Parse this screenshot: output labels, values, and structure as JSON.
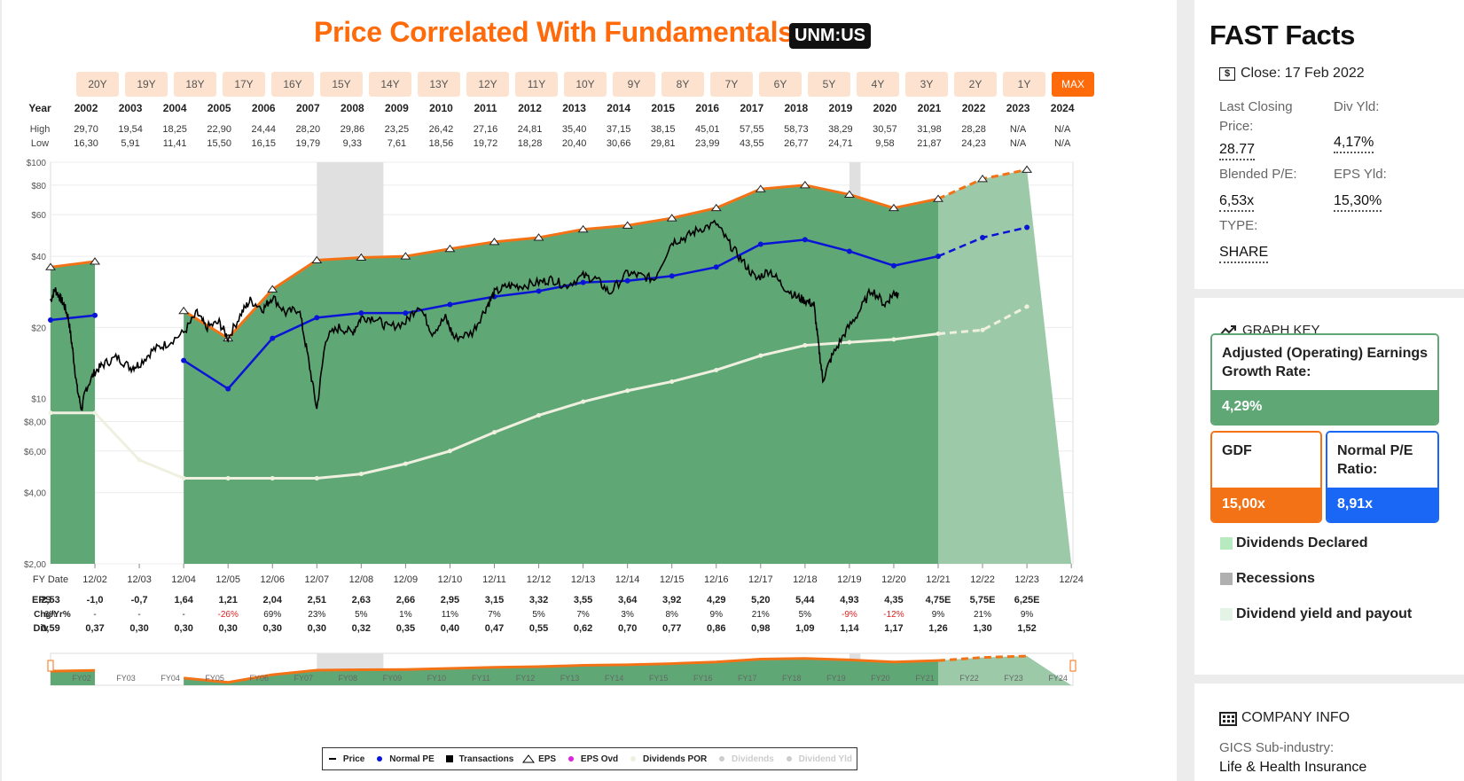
{
  "header": {
    "title": "Price Correlated With Fundamentals",
    "ticker": "UNM:US",
    "ranges": [
      "20Y",
      "19Y",
      "18Y",
      "17Y",
      "16Y",
      "15Y",
      "14Y",
      "13Y",
      "12Y",
      "11Y",
      "10Y",
      "9Y",
      "8Y",
      "7Y",
      "6Y",
      "5Y",
      "4Y",
      "3Y",
      "2Y",
      "1Y",
      "MAX"
    ],
    "active_range": "MAX"
  },
  "legend": [
    {
      "label": "Price",
      "icon": "line-dash",
      "color": "#000000",
      "active": true
    },
    {
      "label": "Normal PE",
      "icon": "dot",
      "color": "#0a14d6",
      "active": true
    },
    {
      "label": "Transactions",
      "icon": "square",
      "color": "#000000",
      "active": true
    },
    {
      "label": "EPS",
      "icon": "triangle",
      "color": "#000000",
      "active": true
    },
    {
      "label": "EPS Ovd",
      "icon": "dot",
      "color": "#e020e0",
      "active": true
    },
    {
      "label": "Dividends POR",
      "icon": "dot",
      "color": "#f0f0e0",
      "active": true
    },
    {
      "label": "Dividends",
      "icon": "dot",
      "color": "#cccccc",
      "active": false
    },
    {
      "label": "Dividend Yld",
      "icon": "dot",
      "color": "#cccccc",
      "active": false
    }
  ],
  "chart_data": {
    "type": "line",
    "title": "Price Correlated With Fundamentals",
    "y_scale": "log",
    "ylim": [
      2,
      100
    ],
    "y_ticks": [
      {
        "v": 100,
        "label": "$100"
      },
      {
        "v": 80,
        "label": "$80"
      },
      {
        "v": 60,
        "label": "$60"
      },
      {
        "v": 40,
        "label": "$40"
      },
      {
        "v": 20,
        "label": "$20"
      },
      {
        "v": 10,
        "label": "$10"
      },
      {
        "v": 8,
        "label": "$8,00"
      },
      {
        "v": 6,
        "label": "$6,00"
      },
      {
        "v": 4,
        "label": "$4,00"
      },
      {
        "v": 2,
        "label": "$2,00"
      }
    ],
    "table": {
      "year_label": "Year",
      "high_label": "High",
      "low_label": "Low",
      "years": [
        "2002",
        "2003",
        "2004",
        "2005",
        "2006",
        "2007",
        "2008",
        "2009",
        "2010",
        "2011",
        "2012",
        "2013",
        "2014",
        "2015",
        "2016",
        "2017",
        "2018",
        "2019",
        "2020",
        "2021",
        "2022",
        "2023",
        "2024"
      ],
      "high": [
        "29,70",
        "19,54",
        "18,25",
        "22,90",
        "24,44",
        "28,20",
        "29,86",
        "23,25",
        "26,42",
        "27,16",
        "24,81",
        "35,40",
        "37,15",
        "38,15",
        "45,01",
        "57,55",
        "58,73",
        "38,29",
        "30,57",
        "31,98",
        "28,28",
        "N/A",
        "N/A"
      ],
      "low": [
        "16,30",
        "5,91",
        "11,41",
        "15,50",
        "16,15",
        "19,79",
        "9,33",
        "7,61",
        "18,56",
        "19,72",
        "18,28",
        "20,40",
        "30,66",
        "29,81",
        "23,99",
        "43,55",
        "26,77",
        "24,71",
        "9,58",
        "21,87",
        "24,23",
        "N/A",
        "N/A"
      ]
    },
    "fy_label": "FY Date",
    "fy_dates": [
      "12/02",
      "12/03",
      "12/04",
      "12/05",
      "12/06",
      "12/07",
      "12/08",
      "12/09",
      "12/10",
      "12/11",
      "12/12",
      "12/13",
      "12/14",
      "12/15",
      "12/16",
      "12/17",
      "12/18",
      "12/19",
      "12/20",
      "12/21",
      "12/22",
      "12/23",
      "12/24"
    ],
    "eps_label": "EPS",
    "eps": [
      "2,53",
      "-1,0",
      "-0,7",
      "1,64",
      "1,21",
      "2,04",
      "2,51",
      "2,63",
      "2,66",
      "2,95",
      "3,15",
      "3,32",
      "3,55",
      "3,64",
      "3,92",
      "4,29",
      "5,20",
      "5,44",
      "4,93",
      "4,35",
      "4,75E",
      "5,75E",
      "6,25E"
    ],
    "chg_label": "Chg/Yr%",
    "chg": [
      "6%",
      "-",
      "-",
      "-",
      "-26%",
      "69%",
      "23%",
      "5%",
      "1%",
      "11%",
      "7%",
      "5%",
      "7%",
      "3%",
      "8%",
      "9%",
      "21%",
      "5%",
      "-9%",
      "-12%",
      "9%",
      "21%",
      "9%"
    ],
    "div_label": "Div",
    "div": [
      "0,59",
      "0,37",
      "0,30",
      "0,30",
      "0,30",
      "0,30",
      "0,30",
      "0,32",
      "0,35",
      "0,40",
      "0,47",
      "0,55",
      "0,62",
      "0,70",
      "0,77",
      "0,86",
      "0,98",
      "1,09",
      "1,14",
      "1,17",
      "1,26",
      "1,30",
      "1,52"
    ],
    "eps_value_line": [
      36,
      38,
      null,
      23.5,
      18,
      29,
      38.5,
      39.5,
      40,
      43,
      46,
      48,
      52,
      54,
      58,
      64,
      77,
      80,
      73,
      64,
      70,
      85,
      93
    ],
    "normal_pe_line": [
      21.5,
      22.5,
      null,
      14.5,
      11,
      18,
      22,
      23,
      23,
      25,
      27,
      28.5,
      31,
      31.5,
      33,
      36,
      45,
      47,
      42,
      36.5,
      40,
      48,
      53
    ],
    "dividend_line": [
      8.7,
      8.7,
      5.5,
      4.6,
      4.6,
      4.6,
      4.6,
      4.8,
      5.3,
      6.0,
      7.2,
      8.5,
      9.7,
      10.8,
      11.8,
      13.2,
      15.2,
      16.8,
      17.3,
      17.8,
      18.8,
      19.5,
      24.5
    ],
    "price_points": [
      [
        0.0,
        26
      ],
      [
        0.1,
        29
      ],
      [
        0.2,
        27
      ],
      [
        0.3,
        25
      ],
      [
        0.4,
        22
      ],
      [
        0.5,
        16
      ],
      [
        0.6,
        11
      ],
      [
        0.7,
        9
      ],
      [
        0.8,
        11
      ],
      [
        1.0,
        13
      ],
      [
        1.2,
        14
      ],
      [
        1.5,
        15
      ],
      [
        1.8,
        13.5
      ],
      [
        2.0,
        14
      ],
      [
        2.3,
        16
      ],
      [
        2.6,
        17
      ],
      [
        3.0,
        19
      ],
      [
        3.3,
        23
      ],
      [
        3.5,
        20
      ],
      [
        3.8,
        21
      ],
      [
        4.0,
        18
      ],
      [
        4.3,
        23
      ],
      [
        4.5,
        26
      ],
      [
        4.8,
        24
      ],
      [
        5.0,
        27
      ],
      [
        5.3,
        23
      ],
      [
        5.6,
        24
      ],
      [
        5.8,
        15
      ],
      [
        6.0,
        9
      ],
      [
        6.2,
        18
      ],
      [
        6.5,
        20
      ],
      [
        6.8,
        19
      ],
      [
        7.0,
        22
      ],
      [
        7.3,
        22
      ],
      [
        7.6,
        20
      ],
      [
        8.0,
        21
      ],
      [
        8.3,
        25
      ],
      [
        8.6,
        19
      ],
      [
        8.9,
        22
      ],
      [
        9.1,
        18
      ],
      [
        9.5,
        19
      ],
      [
        9.8,
        24
      ],
      [
        10.0,
        28
      ],
      [
        10.3,
        30
      ],
      [
        10.6,
        30
      ],
      [
        11.0,
        31
      ],
      [
        11.3,
        32
      ],
      [
        11.6,
        30
      ],
      [
        12.0,
        33
      ],
      [
        12.3,
        32
      ],
      [
        12.6,
        28
      ],
      [
        13.0,
        34
      ],
      [
        13.3,
        33
      ],
      [
        13.6,
        32
      ],
      [
        14.0,
        46
      ],
      [
        14.3,
        48
      ],
      [
        14.6,
        52
      ],
      [
        15.0,
        55
      ],
      [
        15.3,
        45
      ],
      [
        15.6,
        38
      ],
      [
        15.9,
        32
      ],
      [
        16.2,
        35
      ],
      [
        16.5,
        30
      ],
      [
        16.8,
        27
      ],
      [
        17.0,
        26
      ],
      [
        17.2,
        25
      ],
      [
        17.3,
        17
      ],
      [
        17.4,
        12
      ],
      [
        17.6,
        15
      ],
      [
        17.9,
        19
      ],
      [
        18.2,
        23
      ],
      [
        18.5,
        29
      ],
      [
        18.8,
        25
      ],
      [
        19.0,
        28
      ],
      [
        19.1,
        28
      ]
    ],
    "x_ticks": [
      "FY02",
      "FY03",
      "FY04",
      "FY05",
      "FY06",
      "FY07",
      "FY08",
      "FY09",
      "FY10",
      "FY11",
      "FY12",
      "FY13",
      "FY14",
      "FY15",
      "FY16",
      "FY17",
      "FY18",
      "FY19",
      "FY20",
      "FY21",
      "FY22",
      "FY23",
      "FY24"
    ],
    "recessions": [
      [
        6.0,
        7.5
      ],
      [
        18.0,
        18.25
      ]
    ],
    "colors": {
      "fundamentals_fill": "#5fa876",
      "projection_fill": "#9ccaa9",
      "eps_line": "#f47216",
      "normal_pe": "#0a14d6",
      "price": "#000000",
      "dividend": "#f0f0e0",
      "recession": "#e0e0e0"
    }
  },
  "facts": {
    "title": "FAST Facts",
    "close_icon": "dollar-icon",
    "close": "Close: 17 Feb 2022",
    "last_closing_label_1": "Last Closing",
    "last_closing_label_2": "Price:",
    "last_closing_value": "28.77",
    "div_yld_label": "Div Yld:",
    "div_yld_value": "4,17%",
    "blended_pe_label": "Blended P/E:",
    "blended_pe_value": "6,53x",
    "eps_yld_label": "EPS Yld:",
    "eps_yld_value": "15,30%",
    "type_label": "TYPE:",
    "type_value": "SHARE"
  },
  "graph_key": {
    "title": "GRAPH KEY",
    "adj_label": "Adjusted (Operating) Earnings Growth Rate:",
    "adj_value": "4,29%",
    "gdf_label": "GDF",
    "gdf_value": "15,00x",
    "npe_label": "Normal P/E Ratio:",
    "npe_value": "8,91x",
    "items": [
      {
        "label": "Dividends Declared",
        "color": "#b7ebbf"
      },
      {
        "label": "Recessions",
        "color": "#b0b0b0"
      },
      {
        "label": "Dividend yield and payout",
        "color": "#e3f3e6"
      }
    ]
  },
  "company": {
    "title": "COMPANY INFO",
    "gics_label": "GICS Sub-industry:",
    "gics_value": "Life & Health Insurance"
  }
}
